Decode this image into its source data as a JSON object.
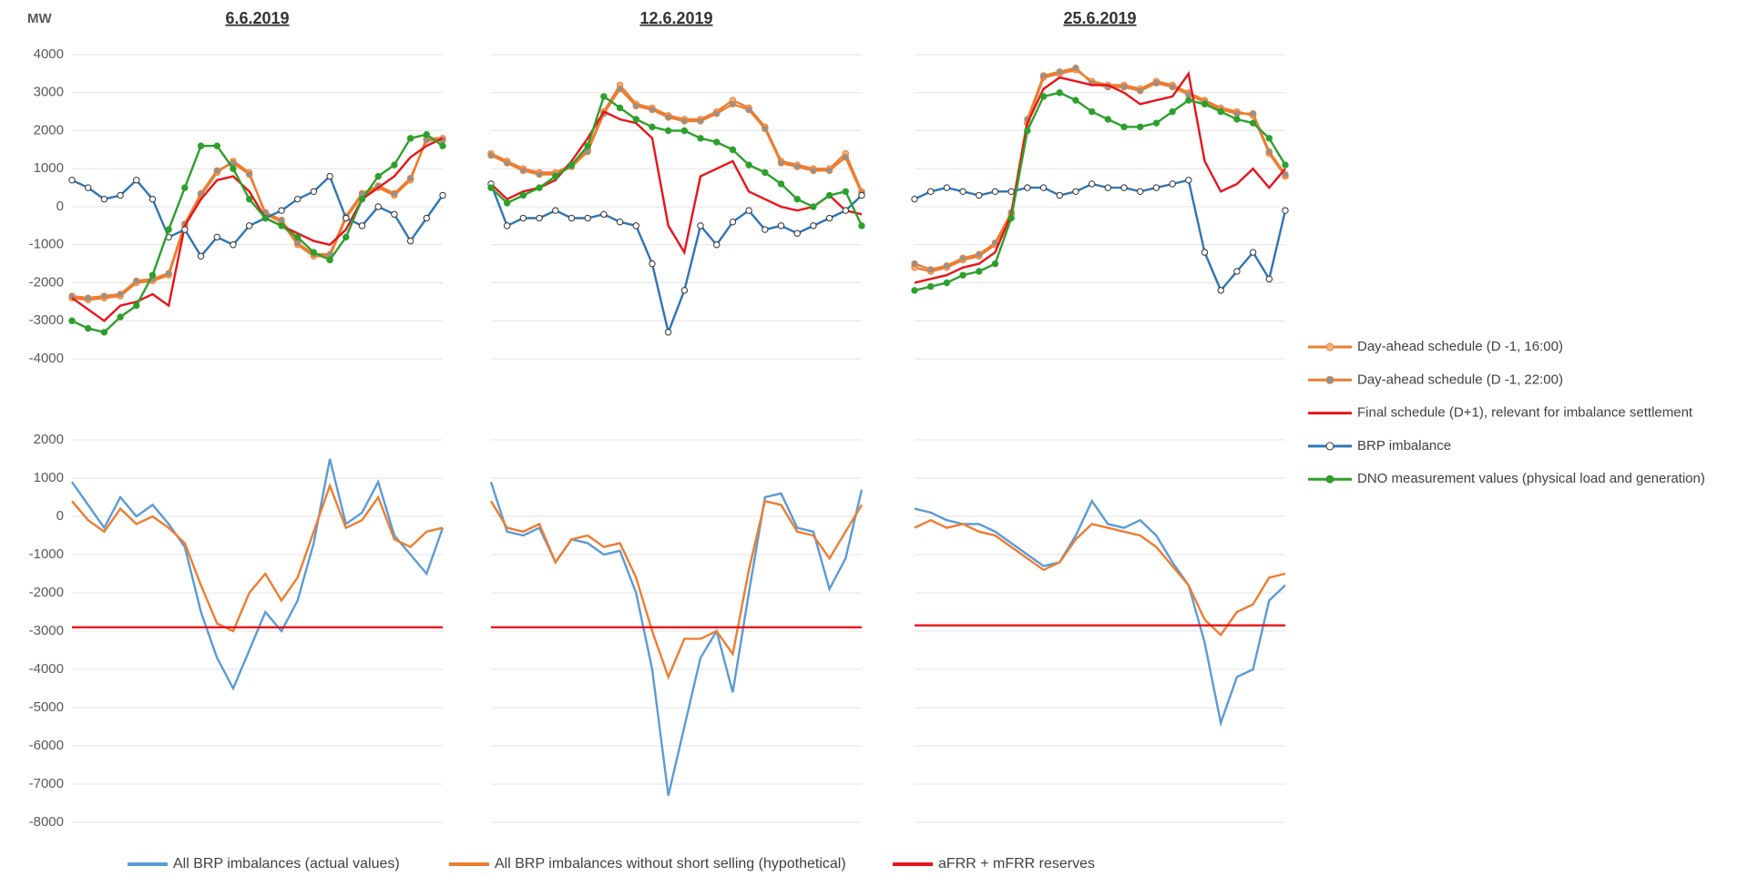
{
  "chart_data": [
    {
      "type": "line",
      "title": "6.6.2019",
      "y_label": "MW",
      "ytick_labels": true,
      "grid": true,
      "x": [
        0,
        1,
        2,
        3,
        4,
        5,
        6,
        7,
        8,
        9,
        10,
        11,
        12,
        13,
        14,
        15,
        16,
        17,
        18,
        19,
        20,
        21,
        22,
        23
      ],
      "xlim": [
        0,
        23
      ],
      "ylim": [
        -4000,
        4000
      ],
      "yticks": [
        -4000,
        -3000,
        -2000,
        -1000,
        0,
        1000,
        2000,
        3000,
        4000
      ],
      "series": [
        {
          "name": "Day-ahead schedule (D -1, 16:00)",
          "color": "#ed7d31",
          "marker": true,
          "marker_fill": "#f4b183",
          "values": [
            -2400,
            -2450,
            -2400,
            -2350,
            -2000,
            -1950,
            -1800,
            -500,
            300,
            900,
            1200,
            900,
            -200,
            -400,
            -1000,
            -1300,
            -1300,
            -300,
            300,
            500,
            300,
            700,
            1800,
            1800
          ]
        },
        {
          "name": "Day-ahead schedule (D -1, 22:00)",
          "color": "#ed7d31",
          "marker": true,
          "marker_fill": "#8497a0",
          "values": [
            -2350,
            -2400,
            -2350,
            -2300,
            -1950,
            -1900,
            -1750,
            -450,
            350,
            950,
            1150,
            850,
            -150,
            -350,
            -950,
            -1250,
            -1250,
            -250,
            350,
            550,
            350,
            750,
            1750,
            1750
          ]
        },
        {
          "name": "Final schedule (D+1), relevant for imbalance settlement",
          "color": "#e8141a",
          "marker": false,
          "values": [
            -2400,
            -2700,
            -3000,
            -2600,
            -2500,
            -2300,
            -2600,
            -500,
            200,
            700,
            800,
            400,
            -300,
            -500,
            -700,
            -900,
            -1000,
            -600,
            200,
            500,
            800,
            1300,
            1600,
            1800
          ]
        },
        {
          "name": "BRP imbalance",
          "color": "#2e75b6",
          "marker": true,
          "marker_fill": "#ffffff",
          "values": [
            700,
            500,
            200,
            300,
            700,
            200,
            -800,
            -600,
            -1300,
            -800,
            -1000,
            -500,
            -300,
            -100,
            200,
            400,
            800,
            -300,
            -500,
            0,
            -200,
            -900,
            -300,
            300
          ]
        },
        {
          "name": "DNO measurement values (physical load and generation)",
          "color": "#2ca02c",
          "marker": true,
          "marker_fill": "#2ca02c",
          "values": [
            -3000,
            -3200,
            -3300,
            -2900,
            -2600,
            -1800,
            -600,
            500,
            1600,
            1600,
            1000,
            200,
            -300,
            -500,
            -800,
            -1200,
            -1400,
            -800,
            200,
            800,
            1100,
            1800,
            1900,
            1600
          ]
        }
      ]
    },
    {
      "type": "line",
      "title": "12.6.2019",
      "ytick_labels": false,
      "grid": true,
      "x": [
        0,
        1,
        2,
        3,
        4,
        5,
        6,
        7,
        8,
        9,
        10,
        11,
        12,
        13,
        14,
        15,
        16,
        17,
        18,
        19,
        20,
        21,
        22,
        23
      ],
      "xlim": [
        0,
        23
      ],
      "ylim": [
        -4000,
        4000
      ],
      "yticks": [
        -4000,
        -3000,
        -2000,
        -1000,
        0,
        1000,
        2000,
        3000,
        4000
      ],
      "series": [
        {
          "color": "#ed7d31",
          "marker": true,
          "marker_fill": "#f4b183",
          "values": [
            1400,
            1200,
            1000,
            900,
            900,
            1100,
            1500,
            2500,
            3200,
            2700,
            2600,
            2400,
            2300,
            2300,
            2500,
            2800,
            2600,
            2100,
            1200,
            1100,
            1000,
            1000,
            1400,
            400
          ]
        },
        {
          "color": "#ed7d31",
          "marker": true,
          "marker_fill": "#8497a0",
          "values": [
            1350,
            1150,
            950,
            850,
            850,
            1050,
            1450,
            2450,
            3100,
            2650,
            2550,
            2350,
            2250,
            2250,
            2450,
            2700,
            2550,
            2050,
            1150,
            1050,
            950,
            950,
            1300,
            350
          ]
        },
        {
          "color": "#e8141a",
          "marker": false,
          "values": [
            600,
            200,
            400,
            500,
            700,
            1200,
            1800,
            2500,
            2300,
            2200,
            1800,
            -500,
            -1200,
            800,
            1000,
            1200,
            400,
            200,
            0,
            -100,
            0,
            300,
            -100,
            -200
          ]
        },
        {
          "color": "#2e75b6",
          "marker": true,
          "marker_fill": "#ffffff",
          "values": [
            600,
            -500,
            -300,
            -300,
            -100,
            -300,
            -300,
            -200,
            -400,
            -500,
            -1500,
            -3300,
            -2200,
            -500,
            -1000,
            -400,
            -100,
            -600,
            -500,
            -700,
            -500,
            -300,
            -100,
            300
          ]
        },
        {
          "color": "#2ca02c",
          "marker": true,
          "marker_fill": "#2ca02c",
          "values": [
            500,
            100,
            300,
            500,
            800,
            1100,
            1600,
            2900,
            2600,
            2300,
            2100,
            2000,
            2000,
            1800,
            1700,
            1500,
            1100,
            900,
            600,
            200,
            0,
            300,
            400,
            -500
          ]
        }
      ]
    },
    {
      "type": "line",
      "title": "25.6.2019",
      "ytick_labels": false,
      "grid": true,
      "x": [
        0,
        1,
        2,
        3,
        4,
        5,
        6,
        7,
        8,
        9,
        10,
        11,
        12,
        13,
        14,
        15,
        16,
        17,
        18,
        19,
        20,
        21,
        22,
        23
      ],
      "xlim": [
        0,
        23
      ],
      "ylim": [
        -4000,
        4000
      ],
      "yticks": [
        -4000,
        -3000,
        -2000,
        -1000,
        0,
        1000,
        2000,
        3000,
        4000
      ],
      "series": [
        {
          "color": "#ed7d31",
          "marker": true,
          "marker_fill": "#f4b183",
          "values": [
            -1600,
            -1700,
            -1600,
            -1400,
            -1300,
            -1000,
            -200,
            2200,
            3400,
            3500,
            3600,
            3300,
            3200,
            3200,
            3100,
            3300,
            3200,
            3000,
            2800,
            2600,
            2500,
            2400,
            1400,
            800
          ]
        },
        {
          "color": "#ed7d31",
          "marker": true,
          "marker_fill": "#8497a0",
          "values": [
            -1500,
            -1650,
            -1550,
            -1350,
            -1250,
            -950,
            -150,
            2300,
            3450,
            3550,
            3650,
            3250,
            3150,
            3150,
            3050,
            3250,
            3150,
            2950,
            2750,
            2550,
            2450,
            2450,
            1450,
            850
          ]
        },
        {
          "color": "#e8141a",
          "marker": false,
          "values": [
            -2000,
            -1900,
            -1800,
            -1600,
            -1500,
            -1200,
            -200,
            2200,
            3100,
            3400,
            3300,
            3200,
            3200,
            3000,
            2700,
            2800,
            2900,
            3500,
            1200,
            400,
            600,
            1000,
            500,
            1000
          ]
        },
        {
          "color": "#2e75b6",
          "marker": true,
          "marker_fill": "#ffffff",
          "values": [
            200,
            400,
            500,
            400,
            300,
            400,
            400,
            500,
            500,
            300,
            400,
            600,
            500,
            500,
            400,
            500,
            600,
            700,
            -1200,
            -2200,
            -1700,
            -1200,
            -1900,
            -100
          ]
        },
        {
          "color": "#2ca02c",
          "marker": true,
          "marker_fill": "#2ca02c",
          "values": [
            -2200,
            -2100,
            -2000,
            -1800,
            -1700,
            -1500,
            -300,
            2000,
            2900,
            3000,
            2800,
            2500,
            2300,
            2100,
            2100,
            2200,
            2500,
            2800,
            2700,
            2500,
            2300,
            2200,
            1800,
            1100
          ]
        }
      ]
    },
    {
      "type": "line",
      "ytick_labels": true,
      "grid": true,
      "x": [
        0,
        1,
        2,
        3,
        4,
        5,
        6,
        7,
        8,
        9,
        10,
        11,
        12,
        13,
        14,
        15,
        16,
        17,
        18,
        19,
        20,
        21,
        22,
        23
      ],
      "xlim": [
        0,
        23
      ],
      "ylim": [
        -8000,
        2000
      ],
      "yticks": [
        -8000,
        -7000,
        -6000,
        -5000,
        -4000,
        -3000,
        -2000,
        -1000,
        0,
        1000,
        2000
      ],
      "series": [
        {
          "name": "All BRP imbalances (actual values)",
          "color": "#5b9bd5",
          "marker": false,
          "values": [
            900,
            300,
            -300,
            500,
            0,
            300,
            -200,
            -800,
            -2500,
            -3700,
            -4500,
            -3500,
            -2500,
            -3000,
            -2200,
            -700,
            1500,
            -200,
            100,
            900,
            -500,
            -1000,
            -1500,
            -300
          ]
        },
        {
          "name": "All BRP imbalances without short selling (hypothetical)",
          "color": "#ed7d31",
          "marker": false,
          "values": [
            400,
            -100,
            -400,
            200,
            -200,
            0,
            -300,
            -700,
            -1800,
            -2800,
            -3000,
            -2000,
            -1500,
            -2200,
            -1600,
            -400,
            800,
            -300,
            -100,
            500,
            -600,
            -800,
            -400,
            -300
          ]
        },
        {
          "name": "aFRR + mFRR reserves",
          "color": "#e8141a",
          "marker": false,
          "values": [
            -2900,
            -2900,
            -2900,
            -2900,
            -2900,
            -2900,
            -2900,
            -2900,
            -2900,
            -2900,
            -2900,
            -2900,
            -2900,
            -2900,
            -2900,
            -2900,
            -2900,
            -2900,
            -2900,
            -2900,
            -2900,
            -2900,
            -2900,
            -2900
          ]
        }
      ]
    },
    {
      "type": "line",
      "ytick_labels": false,
      "grid": true,
      "x": [
        0,
        1,
        2,
        3,
        4,
        5,
        6,
        7,
        8,
        9,
        10,
        11,
        12,
        13,
        14,
        15,
        16,
        17,
        18,
        19,
        20,
        21,
        22,
        23
      ],
      "xlim": [
        0,
        23
      ],
      "ylim": [
        -8000,
        2000
      ],
      "yticks": [
        -8000,
        -7000,
        -6000,
        -5000,
        -4000,
        -3000,
        -2000,
        -1000,
        0,
        1000,
        2000
      ],
      "series": [
        {
          "color": "#5b9bd5",
          "marker": false,
          "values": [
            900,
            -400,
            -500,
            -300,
            -1200,
            -600,
            -700,
            -1000,
            -900,
            -2000,
            -4000,
            -7300,
            -5500,
            -3700,
            -3000,
            -4600,
            -2000,
            500,
            600,
            -300,
            -400,
            -1900,
            -1100,
            700
          ]
        },
        {
          "color": "#ed7d31",
          "marker": false,
          "values": [
            400,
            -300,
            -400,
            -200,
            -1200,
            -600,
            -500,
            -800,
            -700,
            -1600,
            -3000,
            -4200,
            -3200,
            -3200,
            -3000,
            -3600,
            -1400,
            400,
            300,
            -400,
            -500,
            -1100,
            -400,
            300
          ]
        },
        {
          "color": "#e8141a",
          "marker": false,
          "values": [
            -2900,
            -2900,
            -2900,
            -2900,
            -2900,
            -2900,
            -2900,
            -2900,
            -2900,
            -2900,
            -2900,
            -2900,
            -2900,
            -2900,
            -2900,
            -2900,
            -2900,
            -2900,
            -2900,
            -2900,
            -2900,
            -2900,
            -2900,
            -2900
          ]
        }
      ]
    },
    {
      "type": "line",
      "ytick_labels": false,
      "grid": true,
      "x": [
        0,
        1,
        2,
        3,
        4,
        5,
        6,
        7,
        8,
        9,
        10,
        11,
        12,
        13,
        14,
        15,
        16,
        17,
        18,
        19,
        20,
        21,
        22,
        23
      ],
      "xlim": [
        0,
        23
      ],
      "ylim": [
        -8000,
        2000
      ],
      "yticks": [
        -8000,
        -7000,
        -6000,
        -5000,
        -4000,
        -3000,
        -2000,
        -1000,
        0,
        1000,
        2000
      ],
      "series": [
        {
          "color": "#5b9bd5",
          "marker": false,
          "values": [
            200,
            100,
            -100,
            -200,
            -200,
            -400,
            -700,
            -1000,
            -1300,
            -1200,
            -500,
            400,
            -200,
            -300,
            -100,
            -500,
            -1200,
            -1800,
            -3300,
            -5400,
            -4200,
            -4000,
            -2200,
            -1800
          ]
        },
        {
          "color": "#ed7d31",
          "marker": false,
          "values": [
            -300,
            -100,
            -300,
            -200,
            -400,
            -500,
            -800,
            -1100,
            -1400,
            -1200,
            -600,
            -200,
            -300,
            -400,
            -500,
            -800,
            -1300,
            -1800,
            -2700,
            -3100,
            -2500,
            -2300,
            -1600,
            -1500
          ]
        },
        {
          "color": "#e8141a",
          "marker": false,
          "values": [
            -2850,
            -2850,
            -2850,
            -2850,
            -2850,
            -2850,
            -2850,
            -2850,
            -2850,
            -2850,
            -2850,
            -2850,
            -2850,
            -2850,
            -2850,
            -2850,
            -2850,
            -2850,
            -2850,
            -2850,
            -2850,
            -2850,
            -2850,
            -2850
          ]
        }
      ]
    }
  ]
}
